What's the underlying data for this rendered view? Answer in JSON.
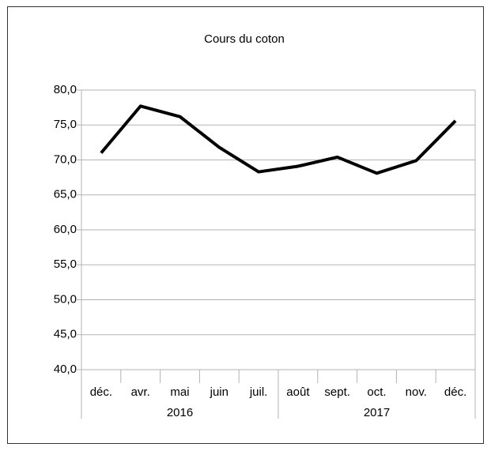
{
  "chart_data": {
    "type": "line",
    "title": "Cours du coton",
    "categories": [
      "déc.",
      "avr.",
      "mai",
      "juin",
      "juil.",
      "août",
      "sept.",
      "oct.",
      "nov.",
      "déc."
    ],
    "category_groups": [
      "2016",
      null,
      null,
      null,
      null,
      "2017",
      null,
      null,
      null,
      null
    ],
    "series": [
      {
        "name": "Cours du coton",
        "color": "#000000",
        "values": [
          71.0,
          77.7,
          76.2,
          71.8,
          68.3,
          69.1,
          70.4,
          68.1,
          69.9,
          75.6
        ]
      }
    ],
    "ylim": [
      40,
      80
    ],
    "yticks": [
      {
        "value": 40,
        "label": "40,0"
      },
      {
        "value": 45,
        "label": "45,0"
      },
      {
        "value": 50,
        "label": "50,0"
      },
      {
        "value": 55,
        "label": "55,0"
      },
      {
        "value": 60,
        "label": "60,0"
      },
      {
        "value": 65,
        "label": "65,0"
      },
      {
        "value": 70,
        "label": "70,0"
      },
      {
        "value": 75,
        "label": "75,0"
      },
      {
        "value": 80,
        "label": "80,0"
      }
    ],
    "grid": true
  }
}
